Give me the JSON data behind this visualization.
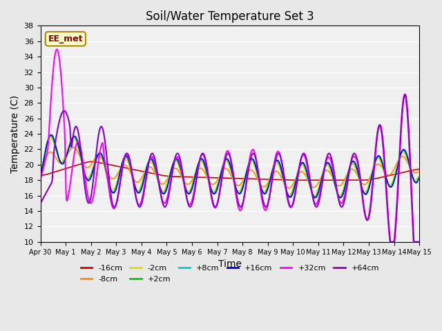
{
  "title": "Soil/Water Temperature Set 3",
  "xlabel": "Time",
  "ylabel": "Temperature (C)",
  "ylim": [
    10,
    38
  ],
  "xlim": [
    0,
    15
  ],
  "xtick_labels": [
    "Apr 30",
    "May 1",
    "May 2",
    "May 3",
    "May 4",
    "May 5",
    "May 6",
    "May 7",
    "May 8",
    "May 9",
    "May 10",
    "May 11",
    "May 12",
    "May 13",
    "May 14",
    "May 15"
  ],
  "annotation": "EE_met",
  "bg_color": "#e8e8e8",
  "plot_bg": "#f0f0f0",
  "series": [
    {
      "label": "-16cm",
      "color": "#cc0000"
    },
    {
      "label": "-8cm",
      "color": "#ff8800"
    },
    {
      "label": "-2cm",
      "color": "#dddd00"
    },
    {
      "label": "+2cm",
      "color": "#00cc00"
    },
    {
      "label": "+8cm",
      "color": "#00cccc"
    },
    {
      "label": "+16cm",
      "color": "#0000cc"
    },
    {
      "label": "+32cm",
      "color": "#ff00ff"
    },
    {
      "label": "+64cm",
      "color": "#8800cc"
    }
  ]
}
